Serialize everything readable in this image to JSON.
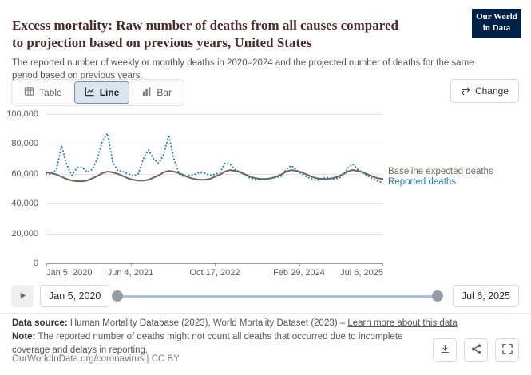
{
  "header": {
    "title": "Excess mortality: Raw number of deaths from all causes compared to projection based on previous years, United States",
    "subtitle": "The reported number of weekly or monthly deaths in 2020–2024 and the projected number of deaths for the same period based on previous years.",
    "logo": {
      "line1": "Our World",
      "line2": "in Data"
    }
  },
  "controls": {
    "tabs": [
      {
        "label": "Table",
        "icon": "table-icon",
        "active": false
      },
      {
        "label": "Line",
        "icon": "line-chart-icon",
        "active": true
      },
      {
        "label": "Bar",
        "icon": "bar-chart-icon",
        "active": false
      }
    ],
    "change_label": "Change"
  },
  "chart_data": {
    "type": "line",
    "title": "Excess mortality: Raw number of deaths from all causes compared to projection based on previous years, United States",
    "xlabel": "",
    "ylabel": "",
    "ylim": [
      0,
      100000
    ],
    "grid": "horizontal",
    "legend_position": "right-of-line-ends",
    "ytick_labels": [
      "100,000",
      "80,000",
      "60,000",
      "40,000",
      "20,000",
      "0"
    ],
    "xtick_labels": [
      "Jan 5, 2020",
      "Jun 4, 2021",
      "Oct 17, 2022",
      "Feb 29, 2024",
      "Jul 6, 2025"
    ],
    "x_range": [
      "Jan 5, 2020",
      "Jul 6, 2025"
    ],
    "x_unit": "month",
    "series": [
      {
        "name": "Baseline expected deaths",
        "color": "#6e655e",
        "style": "solid",
        "values": [
          61000,
          60500,
          59500,
          58000,
          56500,
          55500,
          55000,
          55000,
          55500,
          57000,
          58500,
          60500,
          61500,
          61000,
          60000,
          58500,
          57000,
          56000,
          55500,
          55500,
          56000,
          57500,
          59000,
          61000,
          62000,
          61500,
          60500,
          59000,
          57500,
          56500,
          56000,
          56000,
          56500,
          58000,
          59500,
          61500,
          62500,
          62000,
          61000,
          59500,
          58000,
          57000,
          56500,
          56500,
          57000,
          58000,
          59500,
          61500,
          62500,
          62000,
          61000,
          59500,
          58000,
          57000,
          56500,
          56500,
          57000,
          58000,
          59500,
          61500,
          62500,
          62000,
          61000,
          59500,
          58000,
          57000,
          56500
        ]
      },
      {
        "name": "Reported deaths",
        "color": "#2577a9",
        "style": "dotted",
        "values": [
          60000,
          59500,
          63000,
          79000,
          66000,
          59000,
          64000,
          64500,
          61000,
          63000,
          70000,
          82000,
          87000,
          68000,
          62000,
          61500,
          60000,
          58500,
          60000,
          70000,
          76000,
          70000,
          67000,
          73000,
          86000,
          70000,
          60000,
          58000,
          59000,
          59500,
          61000,
          60500,
          59000,
          59500,
          61000,
          67000,
          66500,
          62500,
          61500,
          59000,
          57000,
          56000,
          56500,
          56500,
          57000,
          57500,
          58500,
          63000,
          65500,
          62500,
          60000,
          58000,
          56500,
          55500,
          57000,
          57500,
          56500,
          57000,
          58000,
          63500,
          66500,
          63000,
          60500,
          58500,
          56500,
          55000,
          54000
        ]
      }
    ]
  },
  "timeline": {
    "start_label": "Jan 5, 2020",
    "end_label": "Jul 6, 2025"
  },
  "footer": {
    "source_prefix": "Data source:",
    "source_text": " Human Mortality Database (2023), World Mortality Dataset (2023) – ",
    "source_link": "Learn more about this data",
    "note_prefix": "Note:",
    "note_text": " The reported number of deaths might not count all deaths that occurred due to incomplete coverage and delays in reporting.",
    "attribution": "OurWorldInData.org/coronavirus | CC BY"
  },
  "colors": {
    "logo_background": "#002147",
    "title_text": "#4a2b2b",
    "reported_blue": "#2577a9",
    "baseline_gray": "#6e655e",
    "tab_active_background": "#dbe5ee",
    "slider_track": "#a5c3da"
  }
}
